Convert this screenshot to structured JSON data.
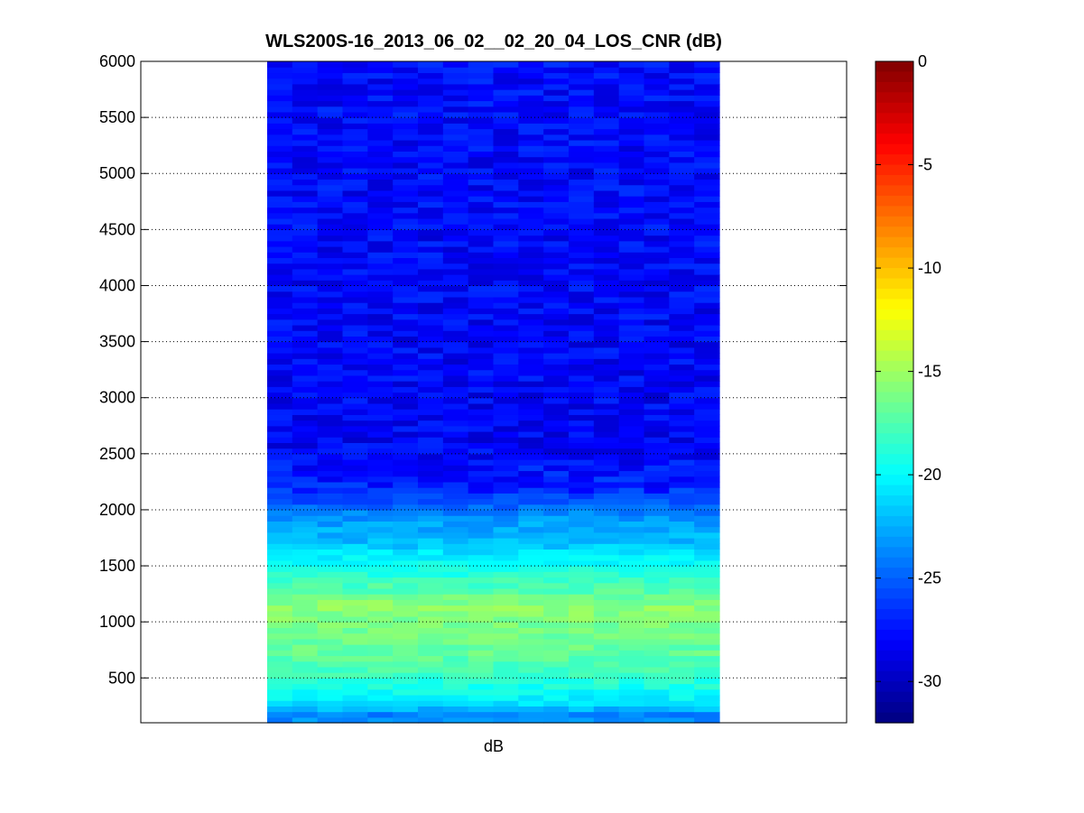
{
  "chart_data": {
    "type": "heatmap",
    "title": "WLS200S-16_2013_06_02__02_20_04_LOS_CNR (dB)",
    "subtitle": "",
    "xlabel": "dB",
    "ylabel": "",
    "ylim": [
      100,
      6000
    ],
    "yticks": [
      500,
      1000,
      1500,
      2000,
      2500,
      3000,
      3500,
      4000,
      4500,
      5000,
      5500,
      6000
    ],
    "grid": "y-dotted",
    "columns": 18,
    "row_step": 50,
    "colormap": "jet",
    "colorbar": {
      "min": -32,
      "max": 0,
      "ticks": [
        0,
        -5,
        -10,
        -15,
        -20,
        -25,
        -30
      ]
    },
    "profile": [
      {
        "range": 100,
        "cnr": -22.0
      },
      {
        "range": 150,
        "cnr": -25.0
      },
      {
        "range": 200,
        "cnr": -23.0
      },
      {
        "range": 250,
        "cnr": -21.5
      },
      {
        "range": 300,
        "cnr": -20.5
      },
      {
        "range": 400,
        "cnr": -19.5
      },
      {
        "range": 500,
        "cnr": -18.5
      },
      {
        "range": 700,
        "cnr": -17.0
      },
      {
        "range": 900,
        "cnr": -16.5
      },
      {
        "range": 1150,
        "cnr": -15.5
      },
      {
        "range": 1250,
        "cnr": -17.0
      },
      {
        "range": 1450,
        "cnr": -19.0
      },
      {
        "range": 1600,
        "cnr": -20.5
      },
      {
        "range": 1700,
        "cnr": -22.0
      },
      {
        "range": 1900,
        "cnr": -23.0
      },
      {
        "range": 2050,
        "cnr": -25.0
      },
      {
        "range": 2200,
        "cnr": -27.0
      },
      {
        "range": 2600,
        "cnr": -28.2
      },
      {
        "range": 4000,
        "cnr": -28.0
      },
      {
        "range": 6000,
        "cnr": -27.8
      }
    ],
    "noise": 0.9,
    "noise_seed": 7
  }
}
